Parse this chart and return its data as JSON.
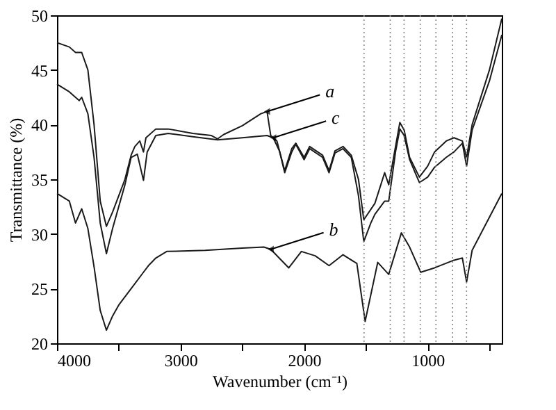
{
  "chart_data": {
    "type": "line",
    "xlabel": "Wavenumber (cm⁻¹)",
    "ylabel": "Transmittance (%)",
    "xlim": [
      4000,
      400
    ],
    "xticks": [
      4000,
      {
        "value": 3500,
        "label": null
      },
      3000,
      {
        "value": 2500,
        "label": null
      },
      2000,
      {
        "value": 1500,
        "label": null
      },
      1000,
      {
        "value": 500,
        "label": null
      }
    ],
    "ylim": [
      20,
      50
    ],
    "yticks": [
      20,
      25,
      30,
      35,
      40,
      45,
      50
    ],
    "grid": false,
    "marker": "none",
    "line_style": "solid",
    "series": [
      {
        "color": "#1a1a1a",
        "x": [
          4000,
          3900,
          3850,
          3800,
          3750,
          3700,
          3650,
          3600,
          3550,
          3500,
          3450,
          3400,
          3370,
          3330,
          3300,
          3280,
          3200,
          3100,
          2900,
          2750,
          2700,
          2650,
          2500,
          2350,
          2300,
          2270,
          2220,
          2157,
          2100,
          2067,
          2000,
          1955,
          1850,
          1798,
          1750,
          1685,
          1618,
          1560,
          1517,
          1427,
          1348,
          1315,
          1260,
          1225,
          1190,
          1146,
          1067,
          1000,
          944,
          850,
          787,
          719,
          685,
          640,
          500,
          400
        ],
        "values": [
          47.5,
          47.1,
          46.6,
          46.6,
          45.0,
          40,
          33,
          30.7,
          32,
          33.5,
          35,
          37.2,
          38,
          38.5,
          37.5,
          38.8,
          39.6,
          39.6,
          39.2,
          39.0,
          38.7,
          39.1,
          39.9,
          41.0,
          41.2,
          39.0,
          38.5,
          35.8,
          37.8,
          38.3,
          37.0,
          38.0,
          37.2,
          35.8,
          37.6,
          38.0,
          37.2,
          35,
          31.3,
          32.8,
          35.6,
          34.5,
          38,
          40.2,
          39.5,
          37.0,
          35.2,
          36.2,
          37.5,
          38.5,
          38.8,
          38.5,
          37,
          40,
          45,
          49.7
        ]
      },
      {
        "color": "#1a1a1a",
        "x": [
          4000,
          3900,
          3850,
          3800,
          3750,
          3700,
          3650,
          3600,
          3550,
          3500,
          3400,
          3300,
          3260,
          3200,
          3112,
          2800,
          2500,
          2326,
          2270,
          2124,
          2022,
          1910,
          1798,
          1685,
          1573,
          1506,
          1404,
          1315,
          1213,
          1146,
          1056,
          944,
          787,
          719,
          685,
          640,
          400
        ],
        "values": [
          33.7,
          33.0,
          31.0,
          32.3,
          30.5,
          27,
          23,
          21.2,
          22.5,
          23.5,
          25,
          26.5,
          27.1,
          27.8,
          28.4,
          28.5,
          28.7,
          28.8,
          28.6,
          26.9,
          28.4,
          28.0,
          27.1,
          28.1,
          27.3,
          22.0,
          27.4,
          26.3,
          30.1,
          28.8,
          26.5,
          26.9,
          27.6,
          27.8,
          25.6,
          28.5,
          33.7
        ]
      },
      {
        "color": "#1a1a1a",
        "x": [
          4000,
          3900,
          3820,
          3800,
          3750,
          3700,
          3650,
          3600,
          3550,
          3500,
          3450,
          3400,
          3350,
          3300,
          3270,
          3200,
          3100,
          2900,
          2700,
          2500,
          2300,
          2250,
          2200,
          2157,
          2100,
          2067,
          2000,
          1955,
          1850,
          1798,
          1750,
          1685,
          1618,
          1560,
          1517,
          1460,
          1427,
          1348,
          1315,
          1260,
          1225,
          1190,
          1146,
          1067,
          1000,
          944,
          850,
          787,
          719,
          685,
          640,
          500,
          400
        ],
        "values": [
          43.7,
          43.0,
          42.2,
          42.5,
          41,
          37,
          31,
          28.2,
          30.5,
          32.5,
          34.5,
          37,
          37.3,
          34.9,
          37.5,
          39.0,
          39.2,
          38.9,
          38.6,
          38.8,
          39.0,
          38.8,
          37.6,
          35.6,
          37.5,
          38.2,
          36.8,
          37.8,
          37.0,
          35.6,
          37.4,
          37.8,
          37.0,
          33.5,
          29.3,
          31,
          31.8,
          33,
          33.0,
          37.5,
          39.6,
          39.0,
          36.8,
          34.7,
          35.2,
          36.1,
          37,
          37.5,
          38.3,
          36.2,
          39.5,
          44,
          48.2
        ]
      }
    ],
    "ref_lines": [
      {
        "axis": "x",
        "value": 1515,
        "line_style": "dotted",
        "color": "#888888"
      },
      {
        "axis": "x",
        "value": 1303,
        "line_style": "dotted",
        "color": "#888888"
      },
      {
        "axis": "x",
        "value": 1191,
        "line_style": "dotted",
        "color": "#888888"
      },
      {
        "axis": "x",
        "value": 1060,
        "line_style": "dotted",
        "color": "#888888"
      },
      {
        "axis": "x",
        "value": 933,
        "line_style": "dotted",
        "color": "#888888"
      },
      {
        "axis": "x",
        "value": 798,
        "line_style": "dotted",
        "color": "#888888"
      },
      {
        "axis": "x",
        "value": 685,
        "line_style": "dotted",
        "color": "#888888"
      }
    ],
    "annotations": [
      {
        "text": "a",
        "x": 2300,
        "y": 41.2
      },
      {
        "text": "b",
        "x": 2270,
        "y": 28.6
      },
      {
        "text": "c",
        "x": 2250,
        "y": 38.8
      }
    ]
  }
}
